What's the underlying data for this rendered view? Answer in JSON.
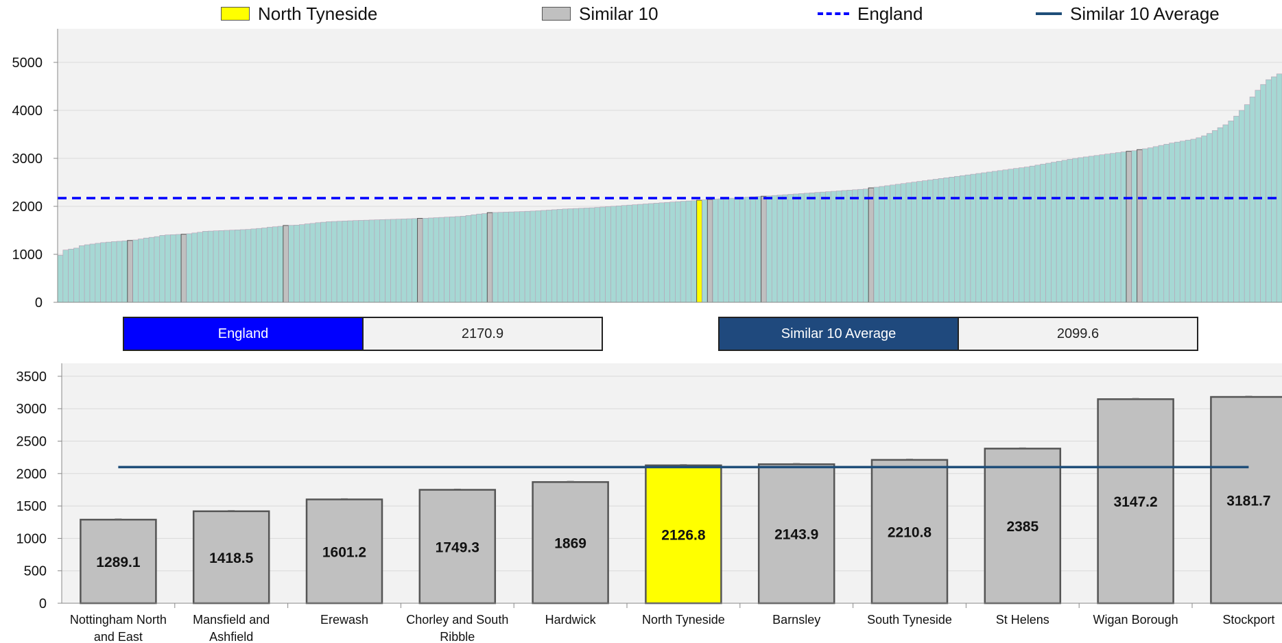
{
  "legend": {
    "items": [
      {
        "label": "North Tyneside",
        "kind": "box",
        "color": "#ffff00"
      },
      {
        "label": "Similar 10",
        "kind": "box",
        "color": "#c0c0c0"
      },
      {
        "label": "England",
        "kind": "dash",
        "color": "#0000ff"
      },
      {
        "label": "Similar 10 Average",
        "kind": "solid",
        "color": "#1f4e79"
      }
    ]
  },
  "stats": {
    "england_label": "England",
    "england_value": "2170.9",
    "similar_label": "Similar 10 Average",
    "similar_value": "2099.6"
  },
  "colors": {
    "highlight": "#ffff00",
    "similar": "#c0c0c0",
    "other": "#a6d8d4",
    "england_line": "#0000ff",
    "average_line": "#1f4e79",
    "england_box": "#0000ff",
    "average_box": "#1f497d",
    "plot_bg": "#f2f2f2"
  },
  "chart_data": [
    {
      "type": "bar",
      "title": "",
      "xlabel": "",
      "ylabel": "",
      "ylim": [
        0,
        5700
      ],
      "yticks": [
        0,
        1000,
        2000,
        3000,
        4000,
        5000
      ],
      "grid": true,
      "england_line": 2170.9,
      "sorted_values": [
        980,
        1090,
        1110,
        1130,
        1180,
        1200,
        1215,
        1230,
        1245,
        1255,
        1265,
        1272,
        1280,
        1289.1,
        1300,
        1320,
        1340,
        1355,
        1370,
        1395,
        1405,
        1410,
        1415,
        1418.5,
        1430,
        1445,
        1460,
        1480,
        1485,
        1490,
        1495,
        1500,
        1505,
        1510,
        1515,
        1520,
        1530,
        1540,
        1550,
        1565,
        1575,
        1585,
        1601.2,
        1605,
        1610,
        1620,
        1635,
        1645,
        1660,
        1670,
        1680,
        1685,
        1690,
        1695,
        1700,
        1705,
        1708,
        1712,
        1716,
        1720,
        1724,
        1727,
        1730,
        1734,
        1738,
        1742,
        1745,
        1749.3,
        1752,
        1758,
        1764,
        1770,
        1776,
        1782,
        1788,
        1795,
        1810,
        1825,
        1840,
        1850,
        1869,
        1872,
        1876,
        1880,
        1884,
        1888,
        1892,
        1897,
        1902,
        1908,
        1915,
        1922,
        1930,
        1938,
        1945,
        1950,
        1955,
        1960,
        1965,
        1970,
        1978,
        1986,
        1994,
        2002,
        2010,
        2018,
        2026,
        2034,
        2042,
        2050,
        2058,
        2066,
        2074,
        2082,
        2090,
        2098,
        2106,
        2112,
        2118,
        2126.8,
        2135,
        2143.9,
        2150,
        2157,
        2163,
        2170,
        2177,
        2184,
        2192,
        2200,
        2205,
        2210.8,
        2218,
        2226,
        2234,
        2242,
        2250,
        2258,
        2266,
        2274,
        2282,
        2290,
        2298,
        2306,
        2314,
        2322,
        2330,
        2338,
        2346,
        2354,
        2362,
        2385,
        2400,
        2415,
        2430,
        2445,
        2460,
        2475,
        2490,
        2505,
        2520,
        2535,
        2550,
        2565,
        2580,
        2595,
        2610,
        2625,
        2640,
        2655,
        2670,
        2685,
        2700,
        2715,
        2730,
        2745,
        2760,
        2775,
        2790,
        2805,
        2820,
        2840,
        2860,
        2880,
        2900,
        2920,
        2940,
        2960,
        2980,
        3000,
        3015,
        3030,
        3045,
        3060,
        3075,
        3090,
        3105,
        3120,
        3135,
        3147.2,
        3160,
        3181.7,
        3200,
        3220,
        3245,
        3270,
        3295,
        3320,
        3340,
        3360,
        3380,
        3400,
        3430,
        3470,
        3520,
        3580,
        3640,
        3700,
        3780,
        3880,
        4000,
        4120,
        4280,
        4420,
        4540,
        4640,
        4700,
        4760
      ],
      "north_tyneside_value": 2126.8,
      "similar_values": [
        1289.1,
        1418.5,
        1601.2,
        1749.3,
        1869,
        2143.9,
        2210.8,
        2385,
        3147.2,
        3181.7
      ]
    },
    {
      "type": "bar",
      "title": "",
      "xlabel": "",
      "ylabel": "",
      "ylim": [
        0,
        3700
      ],
      "yticks": [
        0,
        500,
        1000,
        1500,
        2000,
        2500,
        3000,
        3500
      ],
      "grid": true,
      "average_line": 2099.6,
      "categories": [
        [
          "Nottingham North",
          "and East"
        ],
        [
          "Mansfield and",
          "Ashfield"
        ],
        [
          "Erewash"
        ],
        [
          "Chorley and South",
          "Ribble"
        ],
        [
          "Hardwick"
        ],
        [
          "North Tyneside"
        ],
        [
          "Barnsley"
        ],
        [
          "South Tyneside"
        ],
        [
          "St Helens"
        ],
        [
          "Wigan Borough"
        ],
        [
          "Stockport"
        ]
      ],
      "values": [
        1289.1,
        1418.5,
        1601.2,
        1749.3,
        1869,
        2126.8,
        2143.9,
        2210.8,
        2385,
        3147.2,
        3181.7
      ],
      "value_labels": [
        "1289.1",
        "1418.5",
        "1601.2",
        "1749.3",
        "1869",
        "2126.8",
        "2143.9",
        "2210.8",
        "2385",
        "3147.2",
        "3181.7"
      ],
      "highlight_index": 5
    }
  ]
}
